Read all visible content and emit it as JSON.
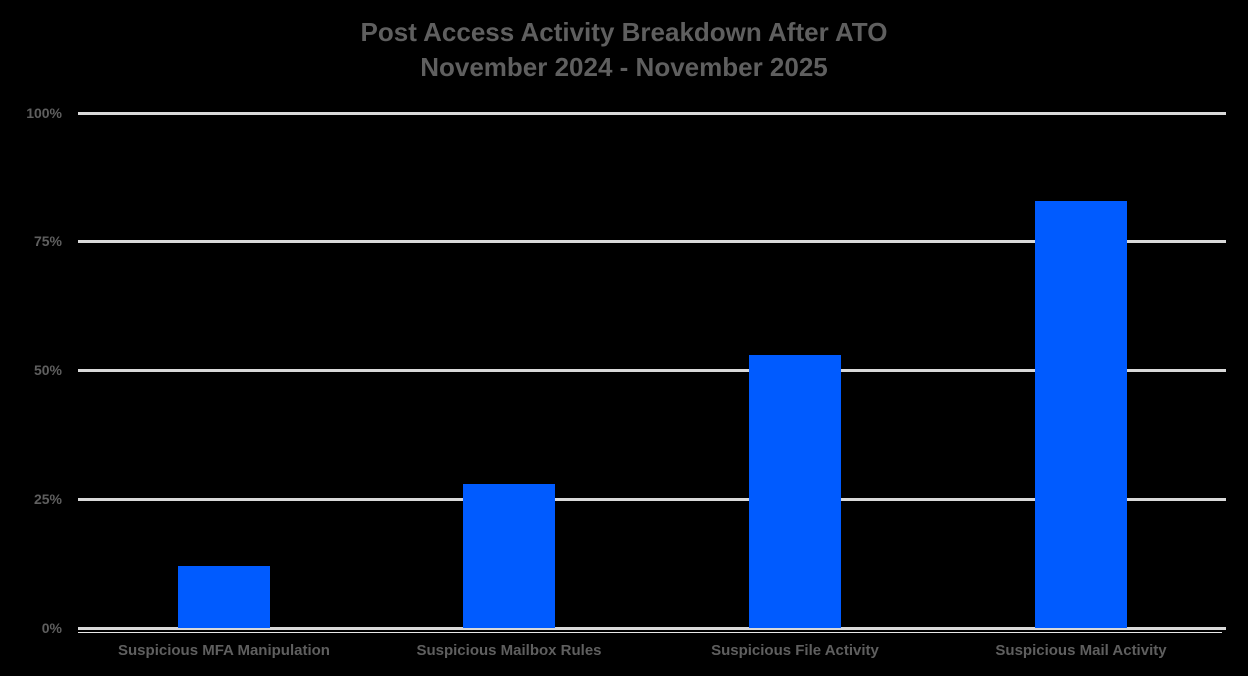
{
  "chart_data": {
    "type": "bar",
    "title": "Post Access Activity Breakdown After ATO",
    "subtitle": "November 2024 -  November 2025",
    "categories": [
      "Suspicious MFA Manipulation",
      "Suspicious Mailbox Rules",
      "Suspicious File Activity",
      "Suspicious Mail Activity"
    ],
    "values": [
      12,
      28,
      53,
      83
    ],
    "value_unit": "%",
    "xlabel": "",
    "ylabel": "",
    "ylim": [
      0,
      100
    ],
    "yticks": [
      "0%",
      "25%",
      "50%",
      "75%",
      "100%"
    ],
    "grid": true,
    "legend": null,
    "bar_color": "#005bff",
    "background_color": "#000000",
    "text_color": "#5f5f5f",
    "grid_color": "#d9d9d9"
  }
}
